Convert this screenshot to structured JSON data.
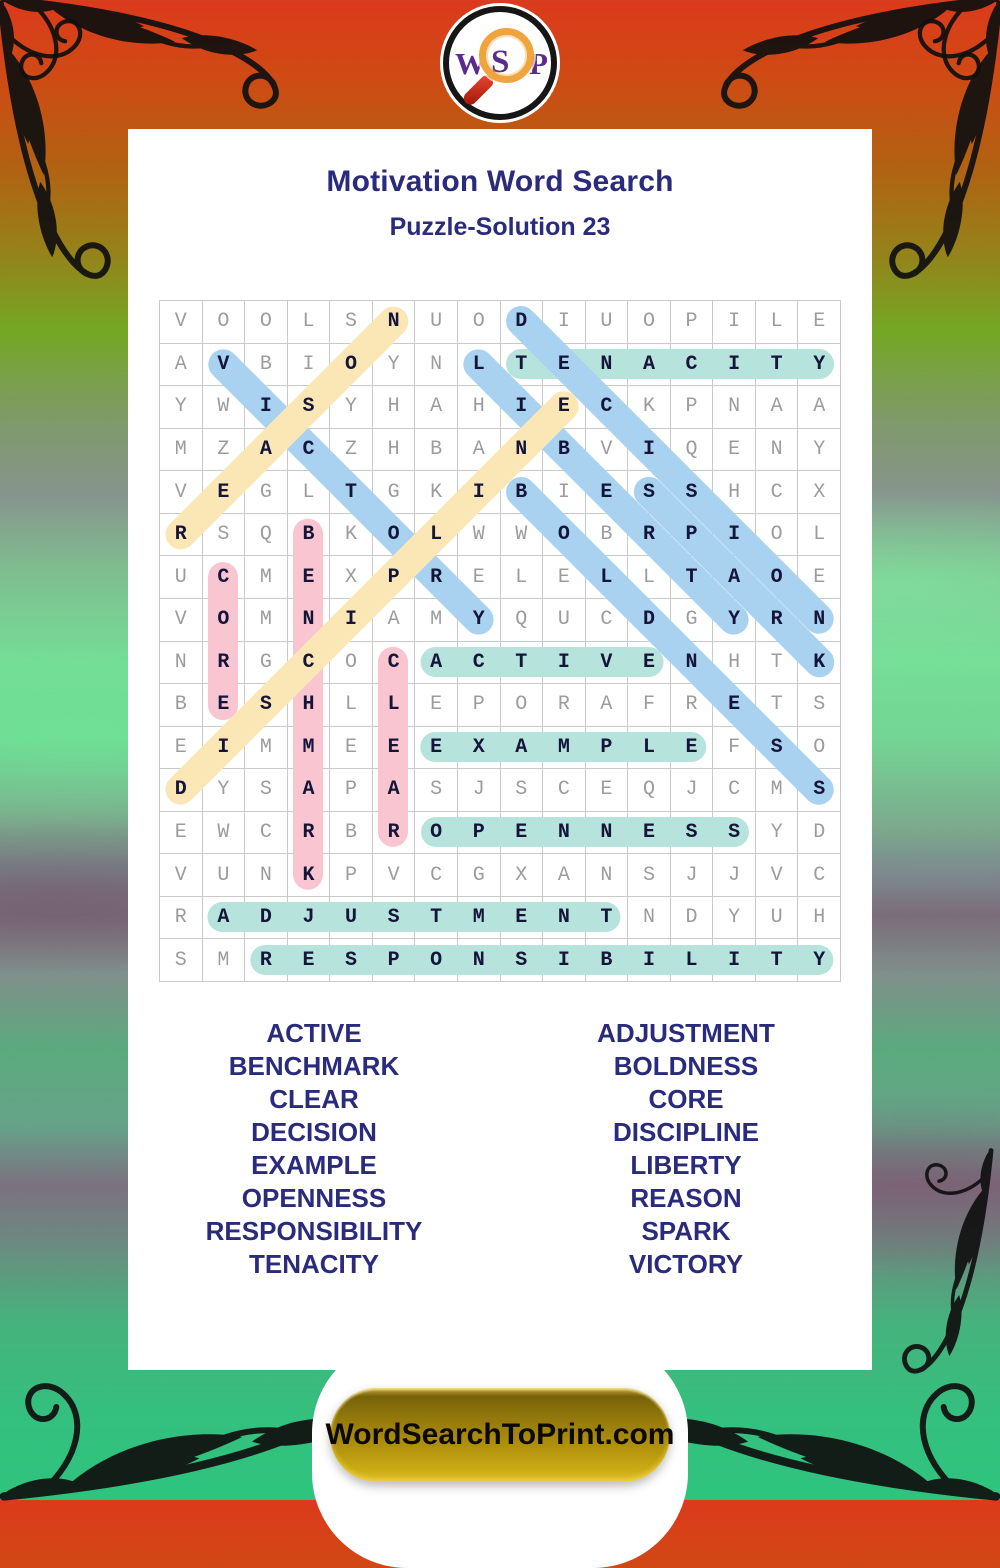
{
  "logo": {
    "letters": [
      "W",
      "S",
      "P"
    ],
    "letter_color": "#5a2b8c"
  },
  "header": {
    "title": "Motivation Word Search",
    "subtitle": "Puzzle-Solution 23",
    "text_color": "#2b2b7e"
  },
  "grid": {
    "rows": 16,
    "cols": 16,
    "letters": [
      "VOOLSNUODIUOPILE",
      "AVBIOYNLTENACITY",
      "YWISYHAHIECKPNAA",
      "MZACZHBANBVIQENY",
      "VEGLTGKIBIESSHCX",
      "RSQBKOLWWOBRPIOL",
      "UCMEXPRELELLTAOE",
      "VOMNIAMYQUCDGYRN",
      "NRGCOCACTIVENHTK",
      "BESHLLEPORAFRETS",
      "EIMMEEEXAMPLEFSO",
      "DYSAPASJSCEQJCMS",
      "EWCRBROPENNESSYD",
      "VUNKPVCGXANSJJVC",
      "RADJUSTMENTNDYUH",
      "SMRESPONSIBILITY"
    ],
    "filler_letter_color": "#9c9c9c",
    "solution_letter_color": "#15153a",
    "highlight_colors": {
      "teal": "#b7e3dd",
      "pink": "#f9c5d1",
      "blue": "#a9d2f1",
      "yellow": "#fbe7b6"
    },
    "solutions": [
      {
        "word": "TENACITY",
        "row": 2,
        "col": 9,
        "dir": "H",
        "color": "teal"
      },
      {
        "word": "ACTIVE",
        "row": 9,
        "col": 7,
        "dir": "H",
        "color": "teal"
      },
      {
        "word": "EXAMPLE",
        "row": 11,
        "col": 7,
        "dir": "H",
        "color": "teal"
      },
      {
        "word": "OPENNESS",
        "row": 13,
        "col": 7,
        "dir": "H",
        "color": "teal"
      },
      {
        "word": "ADJUSTMENT",
        "row": 15,
        "col": 2,
        "dir": "H",
        "color": "teal"
      },
      {
        "word": "RESPONSIBILITY",
        "row": 16,
        "col": 3,
        "dir": "H",
        "color": "teal"
      },
      {
        "word": "CORE",
        "row": 7,
        "col": 2,
        "dir": "V",
        "color": "pink"
      },
      {
        "word": "BENCHMARK",
        "row": 6,
        "col": 4,
        "dir": "V",
        "color": "pink"
      },
      {
        "word": "CLEAR",
        "row": 9,
        "col": 6,
        "dir": "V",
        "color": "pink"
      },
      {
        "word": "VICTORY",
        "row": 2,
        "col": 2,
        "dir": "D",
        "color": "blue"
      },
      {
        "word": "DECISION",
        "row": 1,
        "col": 9,
        "dir": "D",
        "color": "blue"
      },
      {
        "word": "LIBERTY",
        "row": 2,
        "col": 8,
        "dir": "D",
        "color": "blue"
      },
      {
        "word": "BOLDNESS",
        "row": 5,
        "col": 9,
        "dir": "D",
        "color": "blue"
      },
      {
        "word": "SPARK",
        "row": 5,
        "col": 12,
        "dir": "D",
        "color": "blue"
      },
      {
        "word": "REASON",
        "row": 6,
        "col": 1,
        "dir": "U",
        "color": "yellow"
      },
      {
        "word": "DISCIPLINE",
        "row": 12,
        "col": 1,
        "dir": "U",
        "color": "yellow"
      }
    ]
  },
  "word_list": {
    "left": [
      "ACTIVE",
      "BENCHMARK",
      "CLEAR",
      "DECISION",
      "EXAMPLE",
      "OPENNESS",
      "RESPONSIBILITY",
      "TENACITY"
    ],
    "right": [
      "ADJUSTMENT",
      "BOLDNESS",
      "CORE",
      "DISCIPLINE",
      "LIBERTY",
      "REASON",
      "SPARK",
      "VICTORY"
    ]
  },
  "footer": {
    "site_label": "WordSearchToPrint.com"
  }
}
